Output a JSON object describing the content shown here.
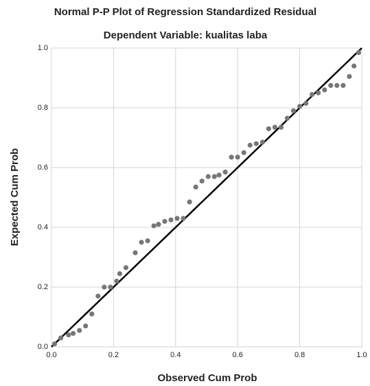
{
  "chart_data": {
    "type": "scatter",
    "title": "Normal P-P Plot of Regression Standardized Residual",
    "subtitle": "Dependent Variable: kualitas laba",
    "x_label": "Observed Cum Prob",
    "y_label": "Expected Cum Prob",
    "xlim": [
      0,
      1
    ],
    "ylim": [
      0,
      1
    ],
    "xticks": [
      {
        "value": 0,
        "label": "0.0"
      },
      0.2,
      0.4,
      0.6,
      0.8,
      {
        "value": 1,
        "label": "1.0"
      }
    ],
    "yticks": [
      {
        "value": 0,
        "label": "0.0"
      },
      0.2,
      0.4,
      0.6,
      0.8,
      {
        "value": 1,
        "label": "1.0"
      }
    ],
    "grid": true,
    "color": "#777777",
    "line_color": "#000000",
    "reference_line": {
      "x": [
        0,
        1
      ],
      "y": [
        0,
        1
      ]
    },
    "x": [
      0.01,
      0.03,
      0.055,
      0.07,
      0.09,
      0.11,
      0.13,
      0.15,
      0.17,
      0.19,
      0.21,
      0.22,
      0.24,
      0.27,
      0.29,
      0.31,
      0.33,
      0.345,
      0.365,
      0.385,
      0.405,
      0.425,
      0.445,
      0.465,
      0.485,
      0.505,
      0.525,
      0.54,
      0.56,
      0.58,
      0.6,
      0.62,
      0.64,
      0.66,
      0.68,
      0.7,
      0.72,
      0.74,
      0.76,
      0.78,
      0.8,
      0.82,
      0.84,
      0.86,
      0.88,
      0.9,
      0.92,
      0.94,
      0.96,
      0.975,
      0.99
    ],
    "values": [
      0.01,
      0.03,
      0.04,
      0.045,
      0.055,
      0.07,
      0.11,
      0.17,
      0.2,
      0.2,
      0.22,
      0.245,
      0.265,
      0.315,
      0.35,
      0.355,
      0.405,
      0.41,
      0.42,
      0.425,
      0.43,
      0.43,
      0.485,
      0.535,
      0.555,
      0.57,
      0.57,
      0.575,
      0.585,
      0.635,
      0.635,
      0.65,
      0.675,
      0.68,
      0.685,
      0.73,
      0.735,
      0.735,
      0.765,
      0.79,
      0.805,
      0.815,
      0.845,
      0.85,
      0.86,
      0.875,
      0.875,
      0.875,
      0.905,
      0.94,
      0.985
    ]
  }
}
